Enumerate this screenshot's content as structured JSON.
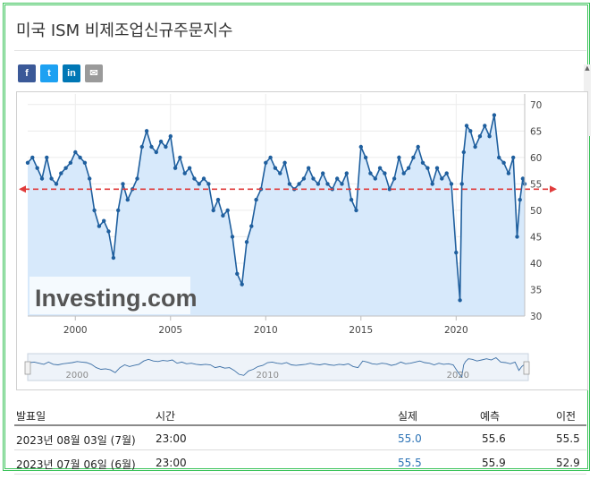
{
  "page": {
    "title": "미국 ISM 비제조업신규주문지수"
  },
  "share": [
    {
      "name": "facebook",
      "glyph": "f",
      "color": "#3b5998"
    },
    {
      "name": "twitter",
      "glyph": "t",
      "color": "#1da1f2"
    },
    {
      "name": "linkedin",
      "glyph": "in",
      "color": "#0077b5"
    },
    {
      "name": "email",
      "glyph": "✉",
      "color": "#9a9a9a"
    }
  ],
  "chart_data": {
    "type": "area",
    "x_range": [
      1997.5,
      2023.6
    ],
    "ylim": [
      30,
      72
    ],
    "y_ticks": [
      30,
      35,
      40,
      45,
      50,
      55,
      60,
      65,
      70
    ],
    "x_tick_labels": [
      "2000",
      "2005",
      "2010",
      "2015",
      "2020"
    ],
    "x_tick_values": [
      2000,
      2005,
      2010,
      2015,
      2020
    ],
    "reference_line": 54,
    "watermark": "Investing.com",
    "navigator_labels": [
      "2000",
      "2010",
      "2020"
    ],
    "series": [
      {
        "x": [
          1997.5,
          1997.75,
          1998,
          1998.25,
          1998.5,
          1998.75,
          1999,
          1999.25,
          1999.5,
          1999.75,
          2000,
          2000.25,
          2000.5,
          2000.75,
          2001,
          2001.25,
          2001.5,
          2001.75,
          2002,
          2002.25,
          2002.5,
          2002.75,
          2003,
          2003.25,
          2003.5,
          2003.75,
          2004,
          2004.25,
          2004.5,
          2004.75,
          2005,
          2005.25,
          2005.5,
          2005.75,
          2006,
          2006.25,
          2006.5,
          2006.75,
          2007,
          2007.25,
          2007.5,
          2007.75,
          2008,
          2008.25,
          2008.5,
          2008.75,
          2009,
          2009.25,
          2009.5,
          2009.75,
          2010,
          2010.25,
          2010.5,
          2010.75,
          2011,
          2011.25,
          2011.5,
          2011.75,
          2012,
          2012.25,
          2012.5,
          2012.75,
          2013,
          2013.25,
          2013.5,
          2013.75,
          2014,
          2014.25,
          2014.5,
          2014.75,
          2015,
          2015.25,
          2015.5,
          2015.75,
          2016,
          2016.25,
          2016.5,
          2016.75,
          2017,
          2017.25,
          2017.5,
          2017.75,
          2018,
          2018.25,
          2018.5,
          2018.75,
          2019,
          2019.25,
          2019.5,
          2019.75,
          2020,
          2020.2,
          2020.3,
          2020.4,
          2020.55,
          2020.75,
          2021,
          2021.25,
          2021.5,
          2021.75,
          2022,
          2022.25,
          2022.5,
          2022.75,
          2023,
          2023.2,
          2023.35,
          2023.5,
          2023.6
        ],
        "values": [
          59,
          60,
          58,
          56,
          60,
          56,
          55,
          57,
          58,
          59,
          61,
          60,
          59,
          56,
          50,
          47,
          48,
          46,
          41,
          50,
          55,
          52,
          54,
          56,
          62,
          65,
          62,
          61,
          63,
          62,
          64,
          58,
          60,
          57,
          58,
          56,
          55,
          56,
          55,
          50,
          52,
          49,
          50,
          45,
          38,
          36,
          44,
          47,
          52,
          54,
          59,
          60,
          58,
          57,
          59,
          55,
          54,
          55,
          56,
          58,
          56,
          55,
          57,
          55,
          54,
          56,
          55,
          57,
          52,
          50,
          62,
          60,
          57,
          56,
          58,
          57,
          54,
          56,
          60,
          57,
          58,
          60,
          62,
          59,
          58,
          55,
          58,
          56,
          57,
          55,
          42,
          33,
          55,
          61,
          66,
          65,
          62,
          64,
          66,
          64,
          68,
          60,
          59,
          57,
          60,
          45,
          52,
          56,
          55
        ]
      }
    ]
  },
  "table": {
    "headers": [
      "발표일",
      "시간",
      "실제",
      "예측",
      "이전"
    ],
    "rows": [
      [
        "2023년 08월 03일 (7월)",
        "23:00",
        "55.0",
        "55.6",
        "55.5"
      ],
      [
        "2023년 07월 06일 (6월)",
        "23:00",
        "55.5",
        "55.9",
        "52.9"
      ]
    ]
  }
}
